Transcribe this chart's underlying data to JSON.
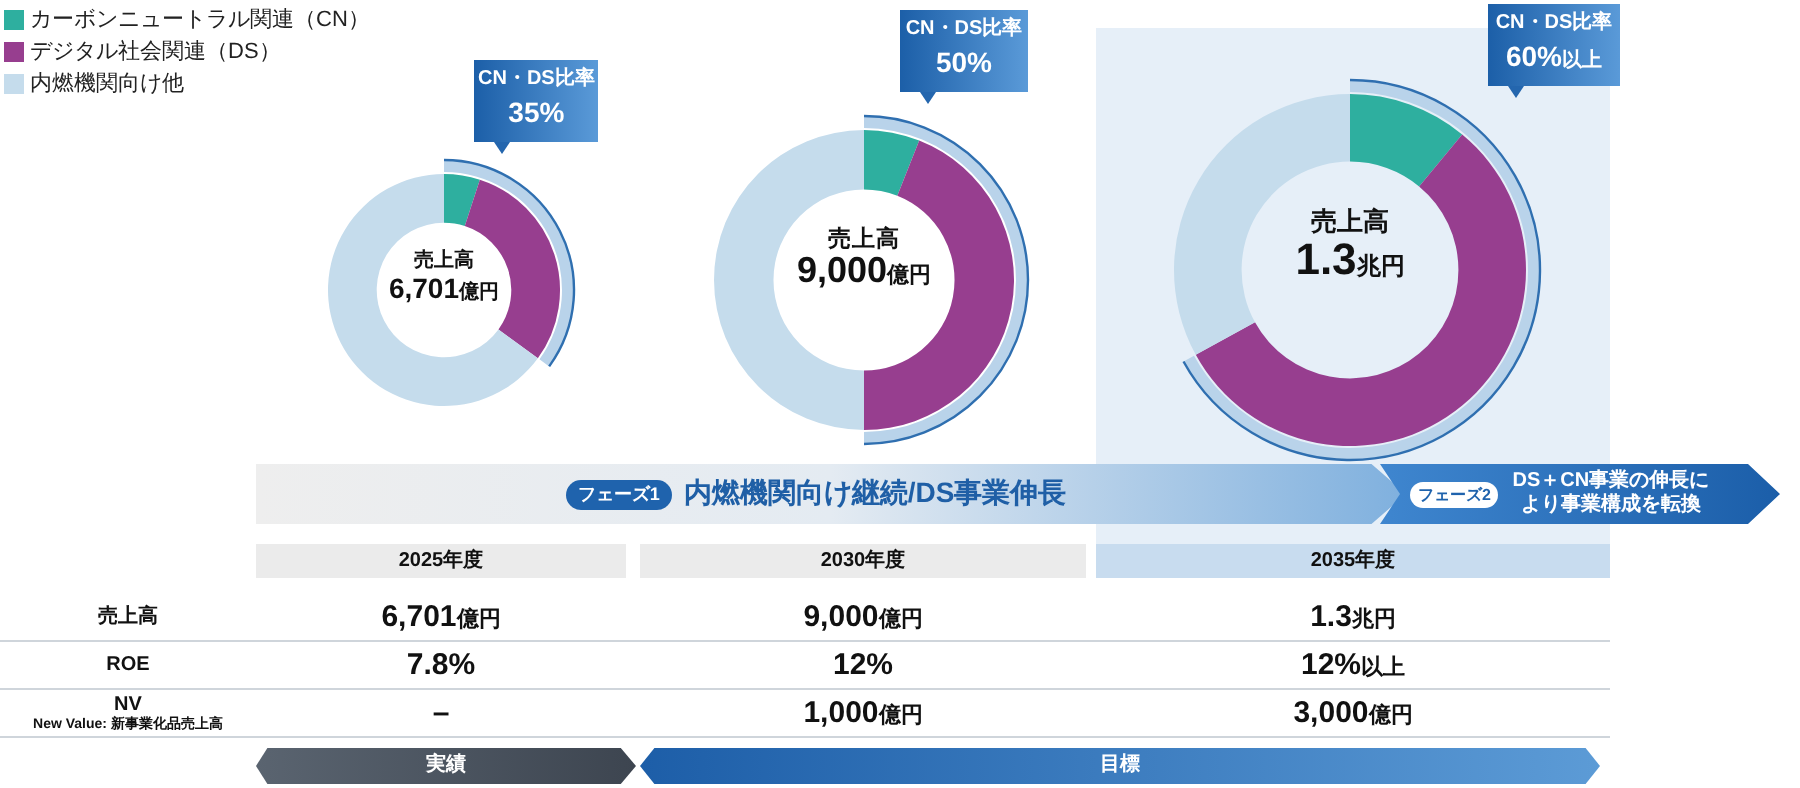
{
  "chart_data": [
    {
      "type": "donut",
      "title": "売上高",
      "subtitle": "6,701億円",
      "categories": [
        "カーボンニュートラル関連（CN）",
        "デジタル社会関連（DS）",
        "内燃機関向け他"
      ],
      "values": [
        5,
        30,
        65
      ],
      "colors": [
        "#2eaf9f",
        "#973e8f",
        "#c5dcec"
      ],
      "legend": "top left",
      "annotations": [
        "CN・DS比率",
        "35%"
      ]
    },
    {
      "type": "donut",
      "title": "売上高",
      "subtitle": "9,000億円",
      "values": [
        6,
        44,
        50
      ],
      "colors": [
        "#2eaf9f",
        "#973e8f",
        "#c5dcec"
      ],
      "annotations": [
        "CN・DS比率",
        "50%"
      ]
    },
    {
      "type": "donut",
      "title": "売上高",
      "subtitle": "1.3兆円",
      "values": [
        11,
        56,
        33
      ],
      "colors": [
        "#2eaf9f",
        "#973e8f",
        "#c5dcec"
      ],
      "annotations": [
        "CN・DS比率",
        "60%以上"
      ]
    },
    {
      "type": "other",
      "categories": [
        "2025年度",
        "2030年度",
        "2035年度"
      ],
      "y_categories": [
        "売上高",
        "ROE",
        "NV"
      ],
      "cell_labels": [
        [
          "6,701億円",
          "9,000億円",
          "1.3兆円"
        ],
        [
          "7.8%",
          "12%",
          "12%以上"
        ],
        [
          "–",
          "1,000億円",
          "3,000億円"
        ]
      ],
      "annotations": [
        "New Value: 新事業化品売上高",
        "フェーズ1",
        "内燃機関向け継続/DS事業伸長",
        "フェーズ2",
        "DS＋CN事業の伸長により事業構成を転換",
        "実績",
        "目標"
      ]
    }
  ]
}
